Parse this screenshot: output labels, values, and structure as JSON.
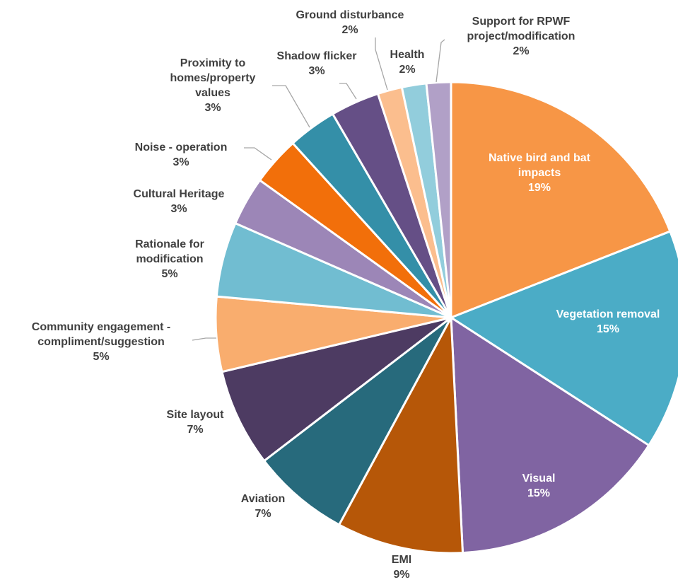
{
  "chart_data": {
    "type": "pie",
    "title": "",
    "start_angle_deg": 0,
    "direction": "clockwise",
    "slice_border_color": "#ffffff",
    "leader_line_color": "#a6a6a6",
    "slices": [
      {
        "label": "Native bird and bat impacts",
        "percent_label": "19%",
        "value": 19.3,
        "color": "#f79646",
        "label_inside": true
      },
      {
        "label": "Vegetation removal",
        "percent_label": "15%",
        "value": 15.3,
        "color": "#4bacc6",
        "label_inside": true
      },
      {
        "label": "Visual",
        "percent_label": "15%",
        "value": 15.3,
        "color": "#8064a2",
        "label_inside": true
      },
      {
        "label": "EMI",
        "percent_label": "9%",
        "value": 8.8,
        "color": "#b65708",
        "label_inside": false
      },
      {
        "label": "Aviation",
        "percent_label": "7%",
        "value": 6.8,
        "color": "#276a7c",
        "label_inside": false
      },
      {
        "label": "Site layout",
        "percent_label": "7%",
        "value": 6.8,
        "color": "#4d3b62",
        "label_inside": false
      },
      {
        "label": "Community engagement - compliment/suggestion",
        "percent_label": "5%",
        "value": 5.2,
        "color": "#f9ad6e",
        "label_inside": false
      },
      {
        "label": "Rationale for modification",
        "percent_label": "5%",
        "value": 5.2,
        "color": "#71bdd1",
        "label_inside": false
      },
      {
        "label": "Cultural Heritage",
        "percent_label": "3%",
        "value": 3.4,
        "color": "#9c86b7",
        "label_inside": false
      },
      {
        "label": "Noise - operation",
        "percent_label": "3%",
        "value": 3.4,
        "color": "#f26f0a",
        "label_inside": false
      },
      {
        "label": "Proximity to homes/property values",
        "percent_label": "3%",
        "value": 3.4,
        "color": "#348fa8",
        "label_inside": false
      },
      {
        "label": "Shadow flicker",
        "percent_label": "3%",
        "value": 3.4,
        "color": "#654f86",
        "label_inside": false
      },
      {
        "label": "Ground disturbance",
        "percent_label": "2%",
        "value": 1.7,
        "color": "#fbbe8e",
        "label_inside": false
      },
      {
        "label": "Health",
        "percent_label": "2%",
        "value": 1.7,
        "color": "#92cddc",
        "label_inside": false
      },
      {
        "label": "Support for RPWF project/modification",
        "percent_label": "2%",
        "value": 1.7,
        "color": "#b1a0c7",
        "label_inside": false
      }
    ]
  }
}
